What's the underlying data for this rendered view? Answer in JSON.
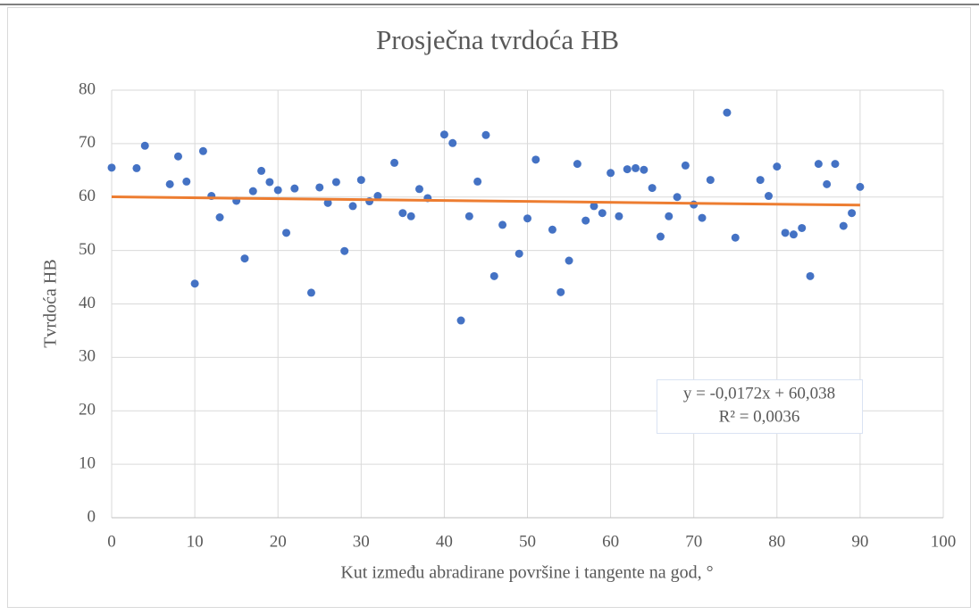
{
  "chart_data": {
    "type": "scatter",
    "title": "Prosječna tvrdoća HB",
    "xlabel": "Kut između abradirane površine i tangente na god, °",
    "ylabel": "Tvrdoća HB",
    "xlim": [
      0,
      100
    ],
    "ylim": [
      0,
      80
    ],
    "xticks": [
      0,
      10,
      20,
      30,
      40,
      50,
      60,
      70,
      80,
      90,
      100
    ],
    "yticks": [
      0,
      10,
      20,
      30,
      40,
      50,
      60,
      70,
      80
    ],
    "grid": true,
    "series": [
      {
        "name": "Tvrdoća HB",
        "color": "#4472c4",
        "x": [
          0,
          3,
          4,
          7,
          8,
          9,
          10,
          11,
          12,
          13,
          15,
          16,
          17,
          18,
          19,
          20,
          21,
          22,
          24,
          25,
          26,
          27,
          28,
          29,
          30,
          31,
          32,
          34,
          35,
          36,
          37,
          38,
          40,
          41,
          42,
          43,
          44,
          45,
          46,
          47,
          49,
          50,
          51,
          53,
          54,
          55,
          56,
          57,
          58,
          59,
          60,
          61,
          62,
          63,
          64,
          65,
          66,
          67,
          68,
          69,
          70,
          71,
          72,
          74,
          75,
          78,
          79,
          80,
          81,
          82,
          83,
          84,
          85,
          86,
          87,
          88,
          89,
          90
        ],
        "values": [
          65.5,
          65.4,
          69.6,
          62.4,
          67.6,
          62.9,
          43.8,
          68.6,
          60.2,
          56.2,
          59.3,
          48.5,
          61.1,
          64.9,
          62.8,
          61.3,
          53.3,
          61.6,
          42.1,
          61.8,
          58.9,
          62.8,
          49.9,
          58.3,
          63.2,
          59.2,
          60.2,
          66.4,
          57.0,
          56.4,
          61.5,
          59.8,
          71.7,
          70.1,
          36.9,
          56.4,
          62.9,
          71.6,
          45.2,
          54.8,
          49.4,
          56.0,
          67.0,
          53.9,
          42.2,
          48.1,
          66.2,
          55.6,
          58.3,
          57.0,
          64.5,
          56.4,
          65.2,
          65.4,
          65.1,
          61.7,
          52.6,
          56.4,
          60.0,
          65.9,
          58.6,
          56.1,
          63.2,
          75.8,
          52.4,
          63.2,
          60.2,
          65.7,
          53.3,
          53.0,
          54.2,
          45.2,
          66.2,
          62.4,
          66.2,
          54.6,
          57.0,
          61.9
        ]
      }
    ],
    "trendline": {
      "color": "#ed7d31",
      "x": [
        0,
        90
      ],
      "values": [
        60.038,
        58.49
      ]
    },
    "annotations": [
      "y = -0,0172x + 60,038",
      "R² = 0,0036"
    ]
  }
}
